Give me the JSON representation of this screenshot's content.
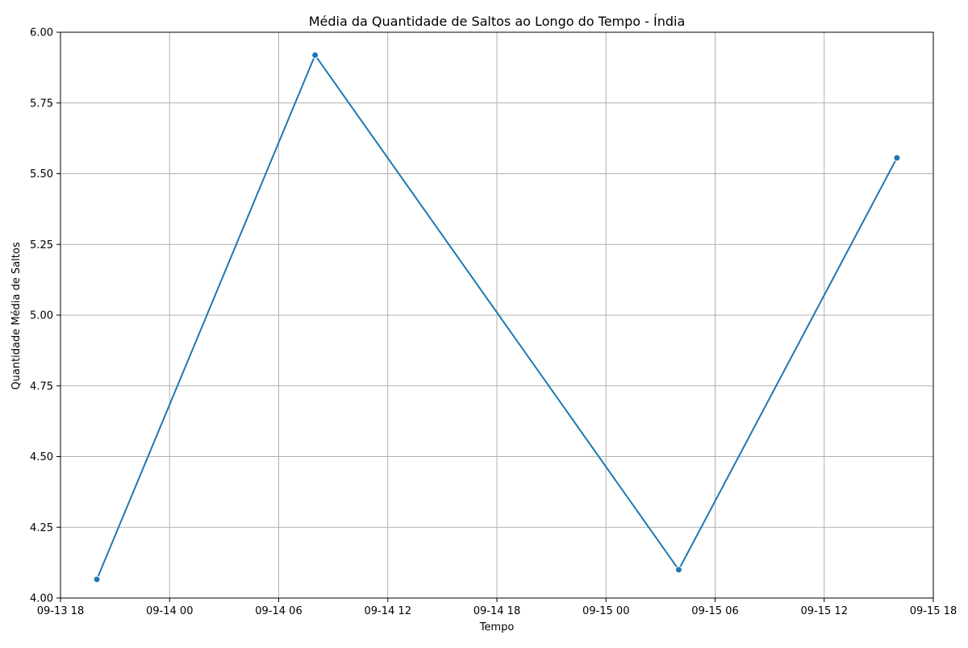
{
  "chart_data": {
    "type": "line",
    "title": "Média da Quantidade de Saltos ao Longo do Tempo - Índia",
    "xlabel": "Tempo",
    "ylabel": "Quantidade Média de Saltos",
    "x": [
      "2023-09-13T20:00",
      "2023-09-14T08:00",
      "2023-09-15T04:00",
      "2023-09-15T16:00"
    ],
    "series": [
      {
        "values": [
          4.066,
          5.919,
          4.1,
          5.556
        ]
      }
    ],
    "xlim": [
      "2023-09-13T18:00",
      "2023-09-15T18:00"
    ],
    "ylim": [
      4.0,
      6.0
    ],
    "x_ticks": [
      "2023-09-13T18:00",
      "2023-09-14T00:00",
      "2023-09-14T06:00",
      "2023-09-14T12:00",
      "2023-09-14T18:00",
      "2023-09-15T00:00",
      "2023-09-15T06:00",
      "2023-09-15T12:00",
      "2023-09-15T18:00"
    ],
    "x_tick_labels": [
      "09-13 18",
      "09-14 00",
      "09-14 06",
      "09-14 12",
      "09-14 18",
      "09-15 00",
      "09-15 06",
      "09-15 12",
      "09-15 18"
    ],
    "y_ticks": [
      4.0,
      4.25,
      4.5,
      4.75,
      5.0,
      5.25,
      5.5,
      5.75,
      6.0
    ],
    "y_tick_labels": [
      "4.00",
      "4.25",
      "4.50",
      "4.75",
      "5.00",
      "5.25",
      "5.50",
      "5.75",
      "6.00"
    ],
    "grid": true,
    "markers": true,
    "color": "#1f77b4"
  }
}
